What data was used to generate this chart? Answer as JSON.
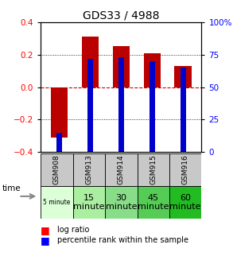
{
  "title": "GDS33 / 4988",
  "categories": [
    "GSM908",
    "GSM913",
    "GSM914",
    "GSM915",
    "GSM916"
  ],
  "time_labels_top": [
    "5 minute",
    "15",
    "30",
    "45",
    "60"
  ],
  "time_labels_bottom": [
    "",
    "minute",
    "minute",
    "minute",
    "minute"
  ],
  "log_ratios": [
    -0.31,
    0.31,
    0.25,
    0.21,
    0.13
  ],
  "percentile_ranks": [
    15,
    72,
    73,
    70,
    65
  ],
  "ylim_left": [
    -0.4,
    0.4
  ],
  "ylim_right": [
    0,
    100
  ],
  "yticks_left": [
    -0.4,
    -0.2,
    0.0,
    0.2,
    0.4
  ],
  "yticks_right": [
    0,
    25,
    50,
    75,
    100
  ],
  "bar_color": "#bb0000",
  "percentile_color": "#0000cc",
  "dot_color": "#000000",
  "dash_color": "#cc0000",
  "gsm_bg": "#c8c8c8",
  "time_bg_colors": [
    "#ddffd8",
    "#aaeea0",
    "#88dd88",
    "#55cc55",
    "#22bb22"
  ],
  "bar_width": 0.55,
  "pct_bar_width": 0.18
}
